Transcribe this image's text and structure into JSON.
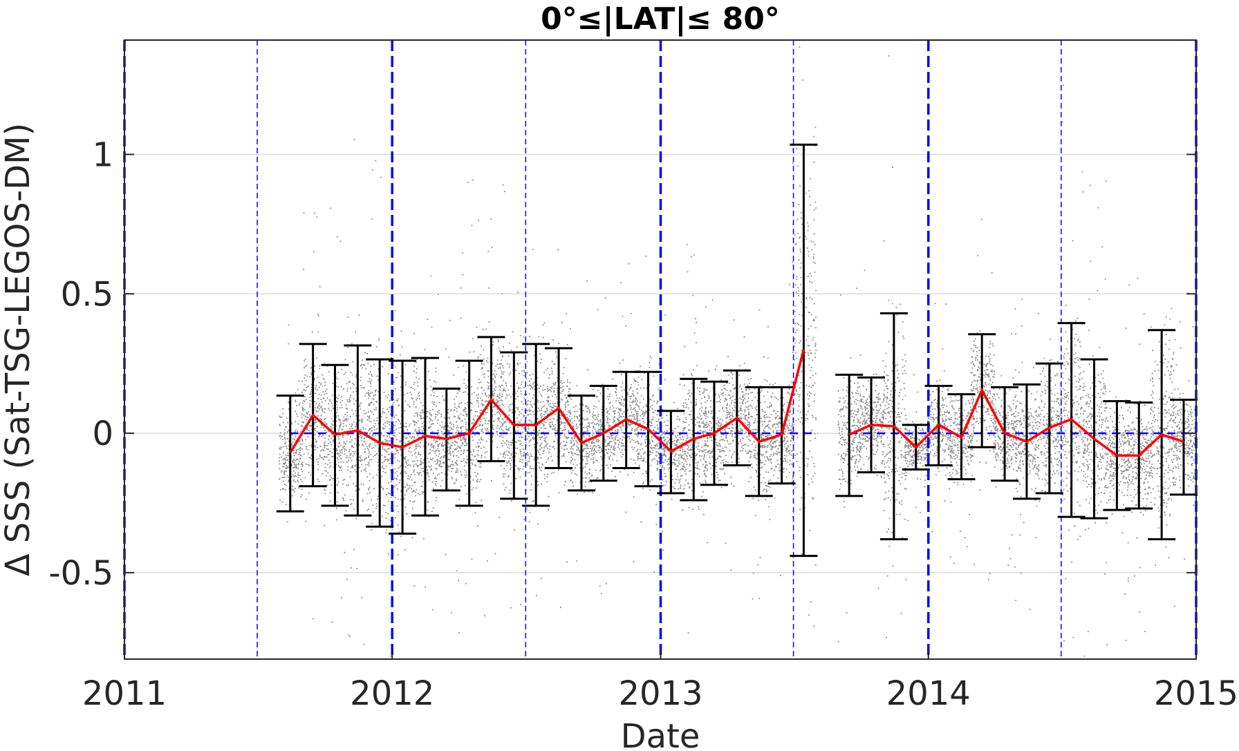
{
  "chart_data": {
    "type": "scatter",
    "title": "0°≤|LAT|≤ 80°",
    "xlabel": "Date",
    "ylabel": "Δ SSS (Sat-TSG-LEGOS-DM)",
    "xlim": [
      "2011-01-01",
      "2015-01-01"
    ],
    "ylim": [
      -0.81,
      1.41
    ],
    "x_ticks": [
      "2011",
      "2012",
      "2013",
      "2014",
      "2015"
    ],
    "y_ticks": [
      -0.5,
      0,
      0.5,
      1
    ],
    "y_tick_labels": [
      "-0.5",
      "0",
      "0.5",
      "1"
    ],
    "grid": "horizontal",
    "reference_line": 0,
    "year_lines": [
      "2011-01-01",
      "2012-01-01",
      "2013-01-01",
      "2014-01-01",
      "2015-01-01"
    ],
    "half_year_lines": [
      "2011-07-01",
      "2012-07-01",
      "2013-07-01",
      "2014-07-01"
    ],
    "colors": {
      "points": "#7f7f7f",
      "mean": "#ff0000",
      "errorbars": "#000000",
      "reference": "#0000ff",
      "grid": "#dddddd"
    },
    "series": [
      {
        "kind": "monthly mean with standard deviation",
        "points": [
          {
            "x": "2011-08-15",
            "mean": -0.07,
            "low": -0.28,
            "high": 0.135
          },
          {
            "x": "2011-09-15",
            "mean": 0.065,
            "low": -0.19,
            "high": 0.32
          },
          {
            "x": "2011-10-15",
            "mean": -0.005,
            "low": -0.26,
            "high": 0.245
          },
          {
            "x": "2011-11-15",
            "mean": 0.01,
            "low": -0.295,
            "high": 0.315
          },
          {
            "x": "2011-12-15",
            "mean": -0.035,
            "low": -0.335,
            "high": 0.265
          },
          {
            "x": "2012-01-15",
            "mean": -0.05,
            "low": -0.36,
            "high": 0.26
          },
          {
            "x": "2012-02-15",
            "mean": -0.01,
            "low": -0.295,
            "high": 0.27
          },
          {
            "x": "2012-03-15",
            "mean": -0.02,
            "low": -0.205,
            "high": 0.16
          },
          {
            "x": "2012-04-15",
            "mean": 0.0,
            "low": -0.26,
            "high": 0.26
          },
          {
            "x": "2012-05-15",
            "mean": 0.12,
            "low": -0.1,
            "high": 0.345
          },
          {
            "x": "2012-06-15",
            "mean": 0.03,
            "low": -0.235,
            "high": 0.29
          },
          {
            "x": "2012-07-15",
            "mean": 0.03,
            "low": -0.26,
            "high": 0.32
          },
          {
            "x": "2012-08-15",
            "mean": 0.09,
            "low": -0.125,
            "high": 0.305
          },
          {
            "x": "2012-09-15",
            "mean": -0.035,
            "low": -0.205,
            "high": 0.135
          },
          {
            "x": "2012-10-15",
            "mean": 0.0,
            "low": -0.17,
            "high": 0.17
          },
          {
            "x": "2012-11-15",
            "mean": 0.05,
            "low": -0.125,
            "high": 0.22
          },
          {
            "x": "2012-12-15",
            "mean": 0.015,
            "low": -0.19,
            "high": 0.22
          },
          {
            "x": "2013-01-15",
            "mean": -0.065,
            "low": -0.215,
            "high": 0.08
          },
          {
            "x": "2013-02-15",
            "mean": -0.02,
            "low": -0.24,
            "high": 0.195
          },
          {
            "x": "2013-03-15",
            "mean": 0.0,
            "low": -0.185,
            "high": 0.185
          },
          {
            "x": "2013-04-15",
            "mean": 0.055,
            "low": -0.115,
            "high": 0.225
          },
          {
            "x": "2013-05-15",
            "mean": -0.03,
            "low": -0.225,
            "high": 0.165
          },
          {
            "x": "2013-06-15",
            "mean": -0.005,
            "low": -0.18,
            "high": 0.165
          },
          {
            "x": "2013-07-15",
            "mean": 0.3,
            "low": -0.44,
            "high": 1.035
          },
          {
            "x": "2013-09-15",
            "mean": -0.005,
            "low": -0.225,
            "high": 0.21
          },
          {
            "x": "2013-10-15",
            "mean": 0.03,
            "low": -0.14,
            "high": 0.2
          },
          {
            "x": "2013-11-15",
            "mean": 0.025,
            "low": -0.38,
            "high": 0.43
          },
          {
            "x": "2013-12-15",
            "mean": -0.05,
            "low": -0.13,
            "high": 0.03
          },
          {
            "x": "2014-01-15",
            "mean": 0.03,
            "low": -0.115,
            "high": 0.17
          },
          {
            "x": "2014-02-15",
            "mean": -0.015,
            "low": -0.165,
            "high": 0.14
          },
          {
            "x": "2014-03-15",
            "mean": 0.155,
            "low": -0.05,
            "high": 0.355
          },
          {
            "x": "2014-04-15",
            "mean": 0.0,
            "low": -0.17,
            "high": 0.165
          },
          {
            "x": "2014-05-15",
            "mean": -0.03,
            "low": -0.235,
            "high": 0.175
          },
          {
            "x": "2014-06-15",
            "mean": 0.02,
            "low": -0.215,
            "high": 0.25
          },
          {
            "x": "2014-07-15",
            "mean": 0.05,
            "low": -0.3,
            "high": 0.395
          },
          {
            "x": "2014-08-15",
            "mean": -0.02,
            "low": -0.305,
            "high": 0.265
          },
          {
            "x": "2014-09-15",
            "mean": -0.08,
            "low": -0.275,
            "high": 0.115
          },
          {
            "x": "2014-10-15",
            "mean": -0.08,
            "low": -0.27,
            "high": 0.11
          },
          {
            "x": "2014-11-15",
            "mean": -0.005,
            "low": -0.38,
            "high": 0.37
          },
          {
            "x": "2014-12-15",
            "mean": -0.03,
            "low": -0.22,
            "high": 0.12
          }
        ]
      }
    ]
  }
}
